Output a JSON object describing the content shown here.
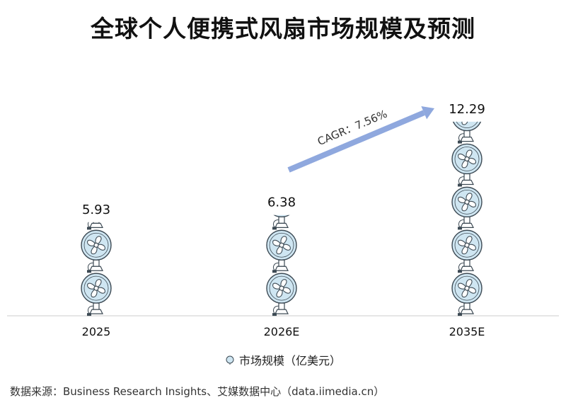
{
  "title": "全球个人便携式风扇市场规模及预测",
  "legend_label": "市场规模（亿美元）",
  "source": "数据来源：Business Research Insights、艾媒数据中心（data.iimedia.cn）",
  "colors": {
    "fan_stroke": "#3d4a54",
    "fan_fill": "#cfe6f2",
    "arrow": "#8fa8de",
    "axis": "#cccccc"
  },
  "chart_data": {
    "type": "bar",
    "title": "全球个人便携式风扇市场规模及预测",
    "categories": [
      "2025",
      "2026E",
      "2035E"
    ],
    "series": [
      {
        "name": "市场规模（亿美元）",
        "values": [
          5.93,
          6.38,
          12.29
        ]
      }
    ],
    "data_labels": [
      "5.93",
      "6.38",
      "12.29"
    ],
    "annotation": "CAGR：7.56%",
    "mark_icon": "fan-icon"
  }
}
